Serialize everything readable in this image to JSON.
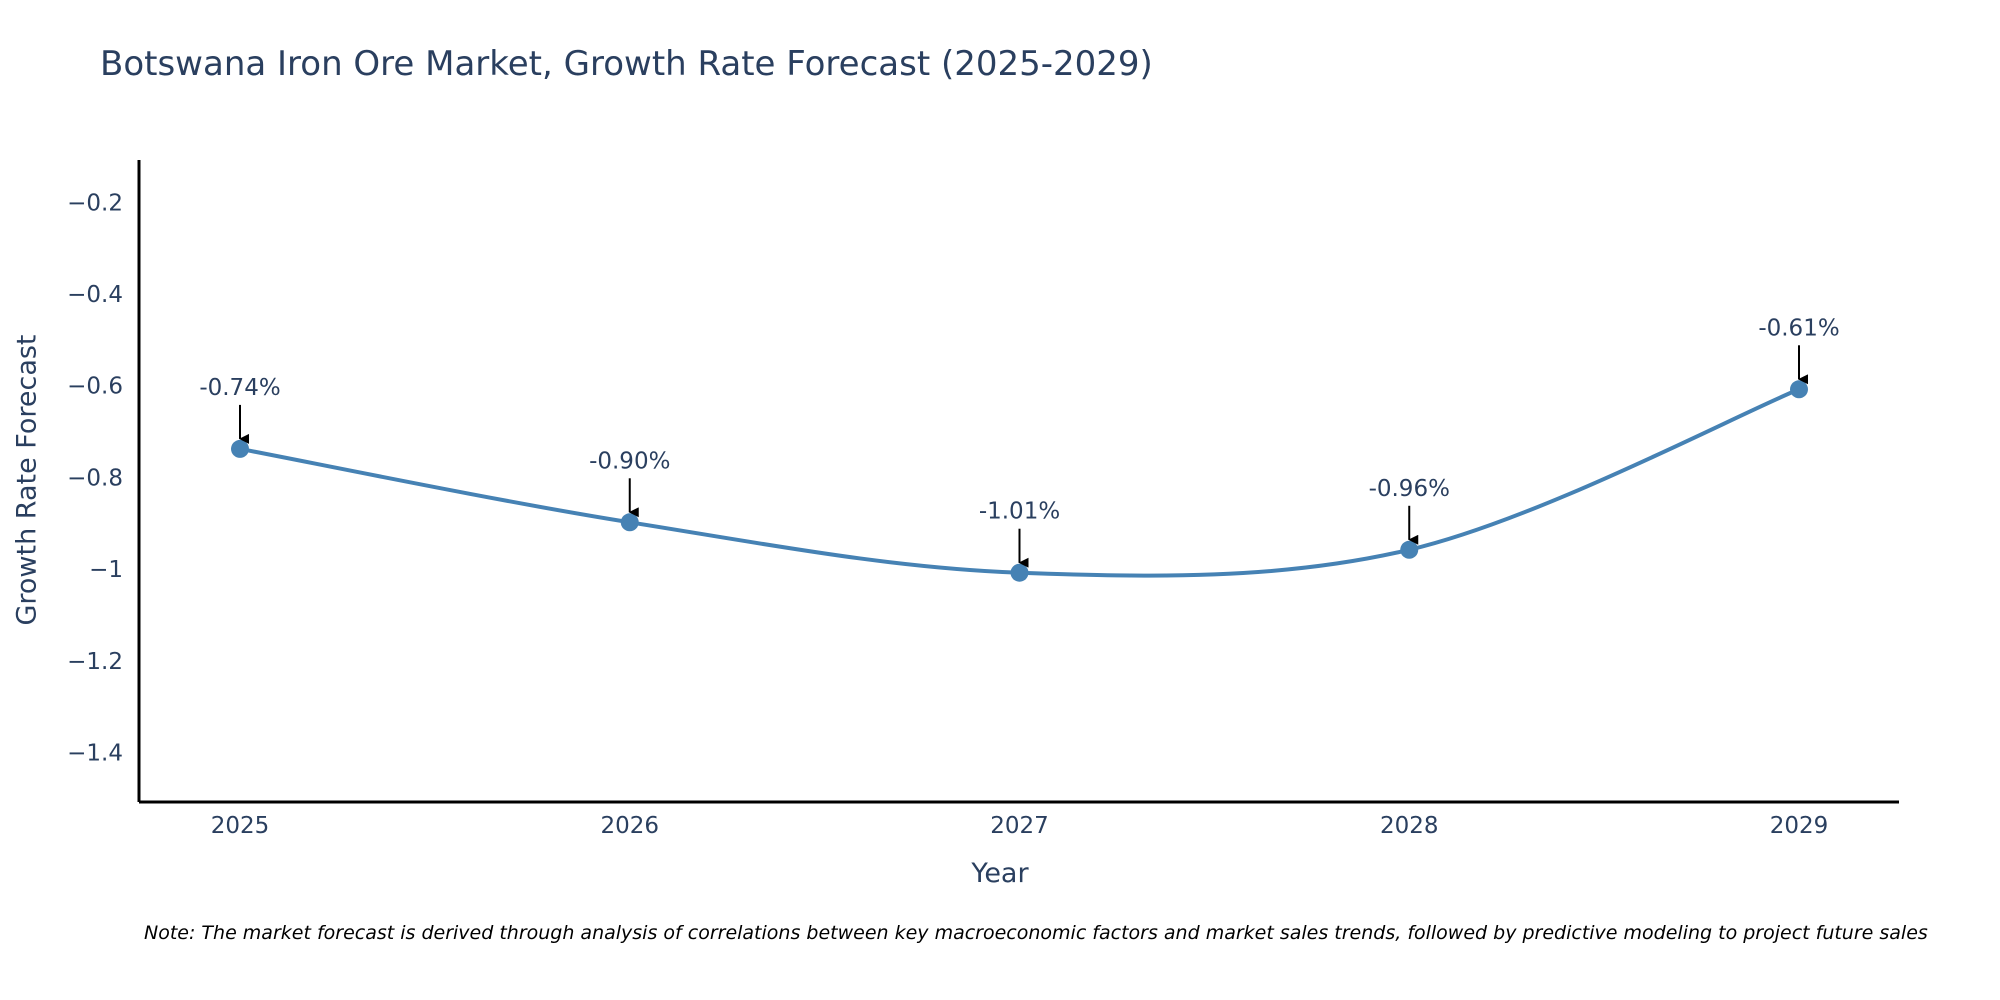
{
  "chart_data": {
    "type": "line",
    "title": "Botswana Iron Ore Market, Growth Rate Forecast (2025-2029)",
    "xlabel": "Year",
    "ylabel": "Growth Rate Forecast",
    "categories": [
      "2025",
      "2026",
      "2027",
      "2028",
      "2029"
    ],
    "series": [
      {
        "name": "Growth Rate Forecast",
        "values": [
          -0.74,
          -0.9,
          -1.01,
          -0.96,
          -0.61
        ],
        "labels": [
          "-0.74%",
          "-0.90%",
          "-1.01%",
          "-0.96%",
          "-0.61%"
        ]
      }
    ],
    "ylim": [
      -1.51,
      -0.11
    ],
    "y_ticks": [
      -0.2,
      -0.4,
      -0.6,
      -0.8,
      -1,
      -1.2,
      -1.4
    ],
    "y_tick_labels": [
      "−0.2",
      "−0.4",
      "−0.6",
      "−0.8",
      "−1",
      "−1.2",
      "−1.4"
    ],
    "grid": false,
    "line_shape": "spline",
    "note": "Note: The market forecast is derived through analysis of correlations between key macroeconomic factors and market sales trends, followed by predictive modeling to project future sales"
  },
  "colors": {
    "line": "#4682b4",
    "axis": "#000000",
    "text": "#2a3f5f",
    "annotation_arrow": "#000000"
  }
}
